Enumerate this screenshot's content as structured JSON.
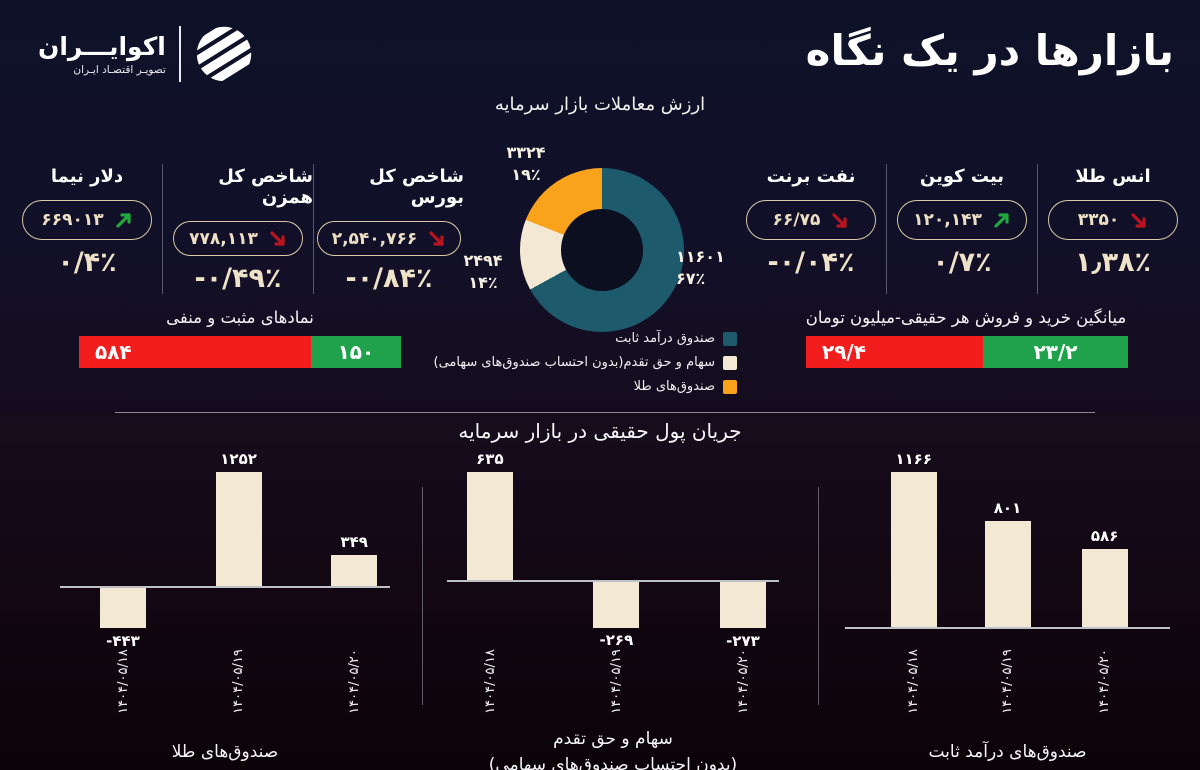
{
  "brand": {
    "name": "اکوایـــران",
    "tagline": "تصویـر اقتصـاد ایـران"
  },
  "page_title": "بازارها در یک نگاه",
  "colors": {
    "teal": "#1c5a6c",
    "cream": "#f2e8d4",
    "orange": "#f9a21b",
    "red": "#f21d1d",
    "green": "#1fa24b",
    "arrow_up": "#1fa83c",
    "arrow_down": "#bb1420",
    "pill_border": "#d9caa7",
    "change_text": "#eee3c8"
  },
  "indicators_left": [
    {
      "label": "دلار نیما",
      "value": "۶۶۹۰۱۳",
      "direction": "up",
      "change": "۰/۴٪"
    },
    {
      "label": "شاخص کل همزن",
      "value": "۷۷۸,۱۱۳",
      "direction": "down",
      "change": "-۰/۴۹٪"
    },
    {
      "label": "شاخص کل بورس",
      "value": "۲,۵۴۰,۷۶۶",
      "direction": "down",
      "change": "-۰/۸۴٪"
    }
  ],
  "indicators_right": [
    {
      "label": "نفت برنت",
      "value": "۶۶/۷۵",
      "direction": "down",
      "change": "-۰/۰۴٪"
    },
    {
      "label": "بیت کوین",
      "value": "۱۲۰,۱۴۳",
      "direction": "up",
      "change": "۰/۷٪"
    },
    {
      "label": "انس طلا",
      "value": "۳۳۵۰",
      "direction": "down",
      "change": "۱٫۳۸٪"
    }
  ],
  "flow_section_title": "جریان پول حقیقی در بازار سرمایه",
  "chart_data": [
    {
      "type": "pie",
      "id": "capital-market-turnover",
      "title": "ارزش معاملات  بازار سرمایه",
      "legend_position": "bottom-right",
      "segments": [
        {
          "label": "صندوق درآمد ثابت",
          "display_value": "۱۱۶۰۱",
          "value": 11601,
          "pct_display": "۶۷٪",
          "pct": 67,
          "color": "#1c5a6c"
        },
        {
          "label": "سهام و حق تقدم(بدون احتساب صندوق‌های سهامی)",
          "display_value": "۲۴۹۴",
          "value": 2494,
          "pct_display": "۱۴٪",
          "pct": 14,
          "color": "#f2e8d4"
        },
        {
          "label": "صندوق‌های طلا",
          "display_value": "۳۳۲۴",
          "value": 3324,
          "pct_display": "۱۹٪",
          "pct": 19,
          "color": "#f9a21b"
        }
      ]
    },
    {
      "type": "bar",
      "variant": "stacked",
      "id": "positive-negative-symbols",
      "title": "نمادهای مثبت و منفی",
      "segments": [
        {
          "label": "۵۸۴",
          "value": 584,
          "color": "#f21d1d",
          "width_pct": 72
        },
        {
          "label": "۱۵۰",
          "value": 150,
          "color": "#1fa24b",
          "width_pct": 28
        }
      ]
    },
    {
      "type": "bar",
      "variant": "stacked",
      "id": "avg-buy-sell-per-person",
      "title": "میانگین خرید و فروش هر حقیقی-میلیون تومان",
      "segments": [
        {
          "label": "۲۹/۴",
          "value": 29.4,
          "color": "#f21d1d",
          "width_pct": 55
        },
        {
          "label": "۲۳/۲",
          "value": 23.2,
          "color": "#1fa24b",
          "width_pct": 45
        }
      ]
    },
    {
      "type": "bar",
      "id": "flow-gold-funds",
      "title_lines": [
        "صندوق‌های طلا"
      ],
      "categories": [
        "۱۴۰۴/۰۵/۱۸",
        "۱۴۰۴/۰۵/۱۹",
        "۱۴۰۴/۰۵/۲۰"
      ],
      "values": [
        -443,
        1252,
        349
      ],
      "display_values": [
        "-۴۴۳",
        "۱۲۵۲",
        "۳۴۹"
      ],
      "bar_color": "#f2e8d4"
    },
    {
      "type": "bar",
      "id": "flow-equities",
      "title_lines": [
        "سهام و حق تقدم",
        "(بدون احتساب صندوق‌های سهامی)"
      ],
      "categories": [
        "۱۴۰۴/۰۵/۱۸",
        "۱۴۰۴/۰۵/۱۹",
        "۱۴۰۴/۰۵/۲۰"
      ],
      "values": [
        635,
        -269,
        -273
      ],
      "display_values": [
        "۶۳۵",
        "-۲۶۹",
        "-۲۷۳"
      ],
      "bar_color": "#f2e8d4"
    },
    {
      "type": "bar",
      "id": "flow-fixed-income-funds",
      "title_lines": [
        "صندوق‌های درآمد ثابت"
      ],
      "categories": [
        "۱۴۰۴/۰۵/۱۸",
        "۱۴۰۴/۰۵/۱۹",
        "۱۴۰۴/۰۵/۲۰"
      ],
      "values": [
        1166,
        801,
        586
      ],
      "display_values": [
        "۱۱۶۶",
        "۸۰۱",
        "۵۸۶"
      ],
      "bar_color": "#f2e8d4"
    }
  ]
}
